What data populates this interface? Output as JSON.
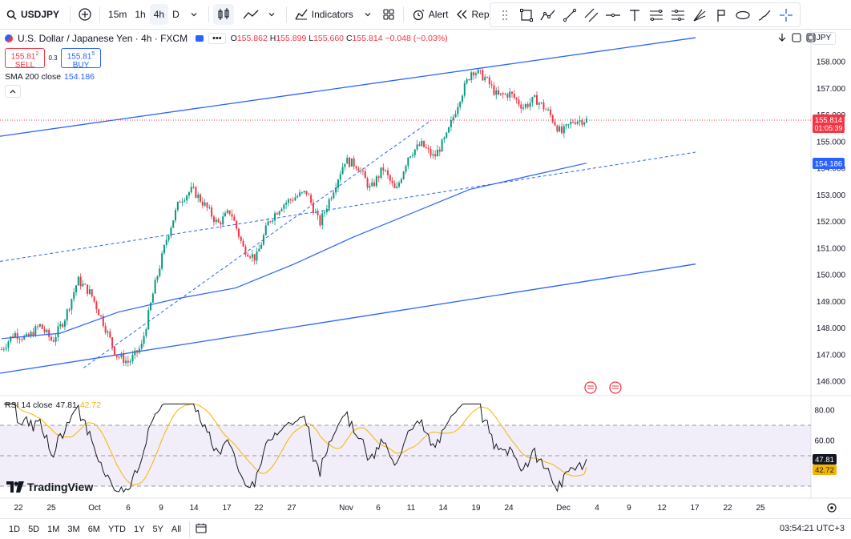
{
  "toolbar": {
    "symbol": "USDJPY",
    "intervals": [
      "15m",
      "1h",
      "4h",
      "D"
    ],
    "active_interval": "4h",
    "indicators_label": "Indicators",
    "alert_label": "Alert",
    "replay_label": "Replay",
    "icons": [
      "search-icon",
      "plus-icon",
      "chevron-down-icon",
      "candles-icon",
      "line-chart-icon",
      "indicators-icon",
      "layouts-icon",
      "alert-icon",
      "replay-icon",
      "undo-icon",
      "redo-icon"
    ]
  },
  "drawing_tools": [
    "rectangle-icon",
    "path-icon",
    "trend-line-icon",
    "parallel-channel-icon",
    "horizontal-line-icon",
    "text-icon",
    "fib-icon",
    "pitchfork-icon",
    "gann-icon",
    "flag-icon",
    "shape-icon",
    "brush-icon",
    "crosshair-icon"
  ],
  "legend": {
    "title": "U.S. Dollar / Japanese Yen · 4h · FXCM",
    "o_label": "O",
    "o": "155.862",
    "h_label": "H",
    "h": "155.899",
    "l_label": "L",
    "l": "155.660",
    "c_label": "C",
    "c": "155.814",
    "change": "−0.048 (−0.03%)",
    "sell_price": "155.81",
    "sell_sup": "2",
    "sell_label": "SELL",
    "spread": "0.3",
    "buy_price": "155.81",
    "buy_sup": "5",
    "buy_label": "BUY",
    "sma_label": "SMA 200 close",
    "sma_value": "154.186"
  },
  "rsi_legend": {
    "label": "RSI 14 close",
    "rsi": "47.81",
    "ma": "42.72"
  },
  "scale": {
    "currency": "JPY",
    "price_ticks": [
      "158.000",
      "157.000",
      "156.000",
      "155.000",
      "154.000",
      "153.000",
      "152.000",
      "151.000",
      "150.000",
      "149.000",
      "148.000",
      "147.000",
      "146.000"
    ],
    "last_price": "155.814",
    "countdown": "01:05:39",
    "sma_tag": "154.186",
    "rsi_ticks": [
      "80.00",
      "60.00"
    ],
    "rsi_tag": "47.81",
    "rsi_ma_tag": "42.72"
  },
  "time_axis": [
    "22",
    "25",
    "Oct",
    "6",
    "9",
    "14",
    "17",
    "22",
    "27",
    "Nov",
    "6",
    "11",
    "14",
    "19",
    "24",
    "Dec",
    "4",
    "9",
    "12",
    "17",
    "22",
    "25"
  ],
  "branding": {
    "logo": "TradingView"
  },
  "bottom": {
    "ranges": [
      "1D",
      "5D",
      "1M",
      "3M",
      "6M",
      "YTD",
      "1Y",
      "5Y",
      "All"
    ],
    "clock": "03:54:21 UTC+3"
  },
  "colors": {
    "up": "#089981",
    "down": "#f23645",
    "sma": "#2962ff",
    "channel": "#2962ff",
    "rsi": "#131722",
    "rsi_ma": "#f5b400",
    "rsi_band": "#7e57c2"
  },
  "chart_data": [
    {
      "type": "candlestick",
      "title": "U.S. Dollar / Japanese Yen · 4h · FXCM",
      "x_ticks": [
        "22",
        "25",
        "Oct",
        "6",
        "9",
        "14",
        "17",
        "22",
        "27",
        "Nov",
        "6",
        "11",
        "14",
        "19",
        "24",
        "Dec"
      ],
      "ylim": [
        145.5,
        159.0
      ],
      "y_ticks": [
        146,
        147,
        148,
        149,
        150,
        151,
        152,
        153,
        154,
        155,
        156,
        157,
        158
      ],
      "close_path": [
        147.2,
        147.8,
        147.6,
        148.1,
        147.5,
        148.4,
        149.8,
        149.3,
        148.2,
        147.0,
        146.7,
        147.3,
        149.5,
        151.4,
        152.8,
        153.2,
        152.6,
        151.9,
        152.4,
        151.0,
        150.6,
        152.0,
        152.6,
        152.9,
        153.1,
        151.9,
        153.1,
        154.3,
        154.1,
        153.2,
        154.0,
        153.1,
        154.5,
        154.9,
        154.4,
        155.2,
        156.6,
        157.7,
        157.4,
        156.7,
        156.8,
        156.3,
        156.6,
        156.1,
        155.3,
        155.8,
        155.81
      ],
      "last": 155.814,
      "sma200": {
        "name": "SMA 200 close",
        "last": 154.186,
        "path": [
          147.6,
          147.8,
          148.6,
          149.1,
          149.5,
          150.4,
          151.4,
          152.3,
          153.2,
          153.7,
          154.19
        ]
      },
      "channel_upper": [
        [
          0,
          155.2
        ],
        [
          1,
          158.9
        ]
      ],
      "channel_lower": [
        [
          0,
          146.3
        ],
        [
          1,
          150.4
        ]
      ],
      "dashed_lines": [
        [
          [
            0,
            150.5
          ],
          [
            1,
            154.6
          ]
        ],
        [
          [
            0.12,
            146.5
          ],
          [
            0.62,
            155.8
          ]
        ]
      ]
    },
    {
      "type": "line",
      "title": "RSI 14 close",
      "ylim": [
        25,
        85
      ],
      "y_ticks": [
        80,
        60
      ],
      "bands": [
        70,
        50,
        30
      ],
      "series": [
        {
          "name": "RSI",
          "last": 47.81
        },
        {
          "name": "RSI-based MA",
          "last": 42.72
        }
      ]
    }
  ]
}
